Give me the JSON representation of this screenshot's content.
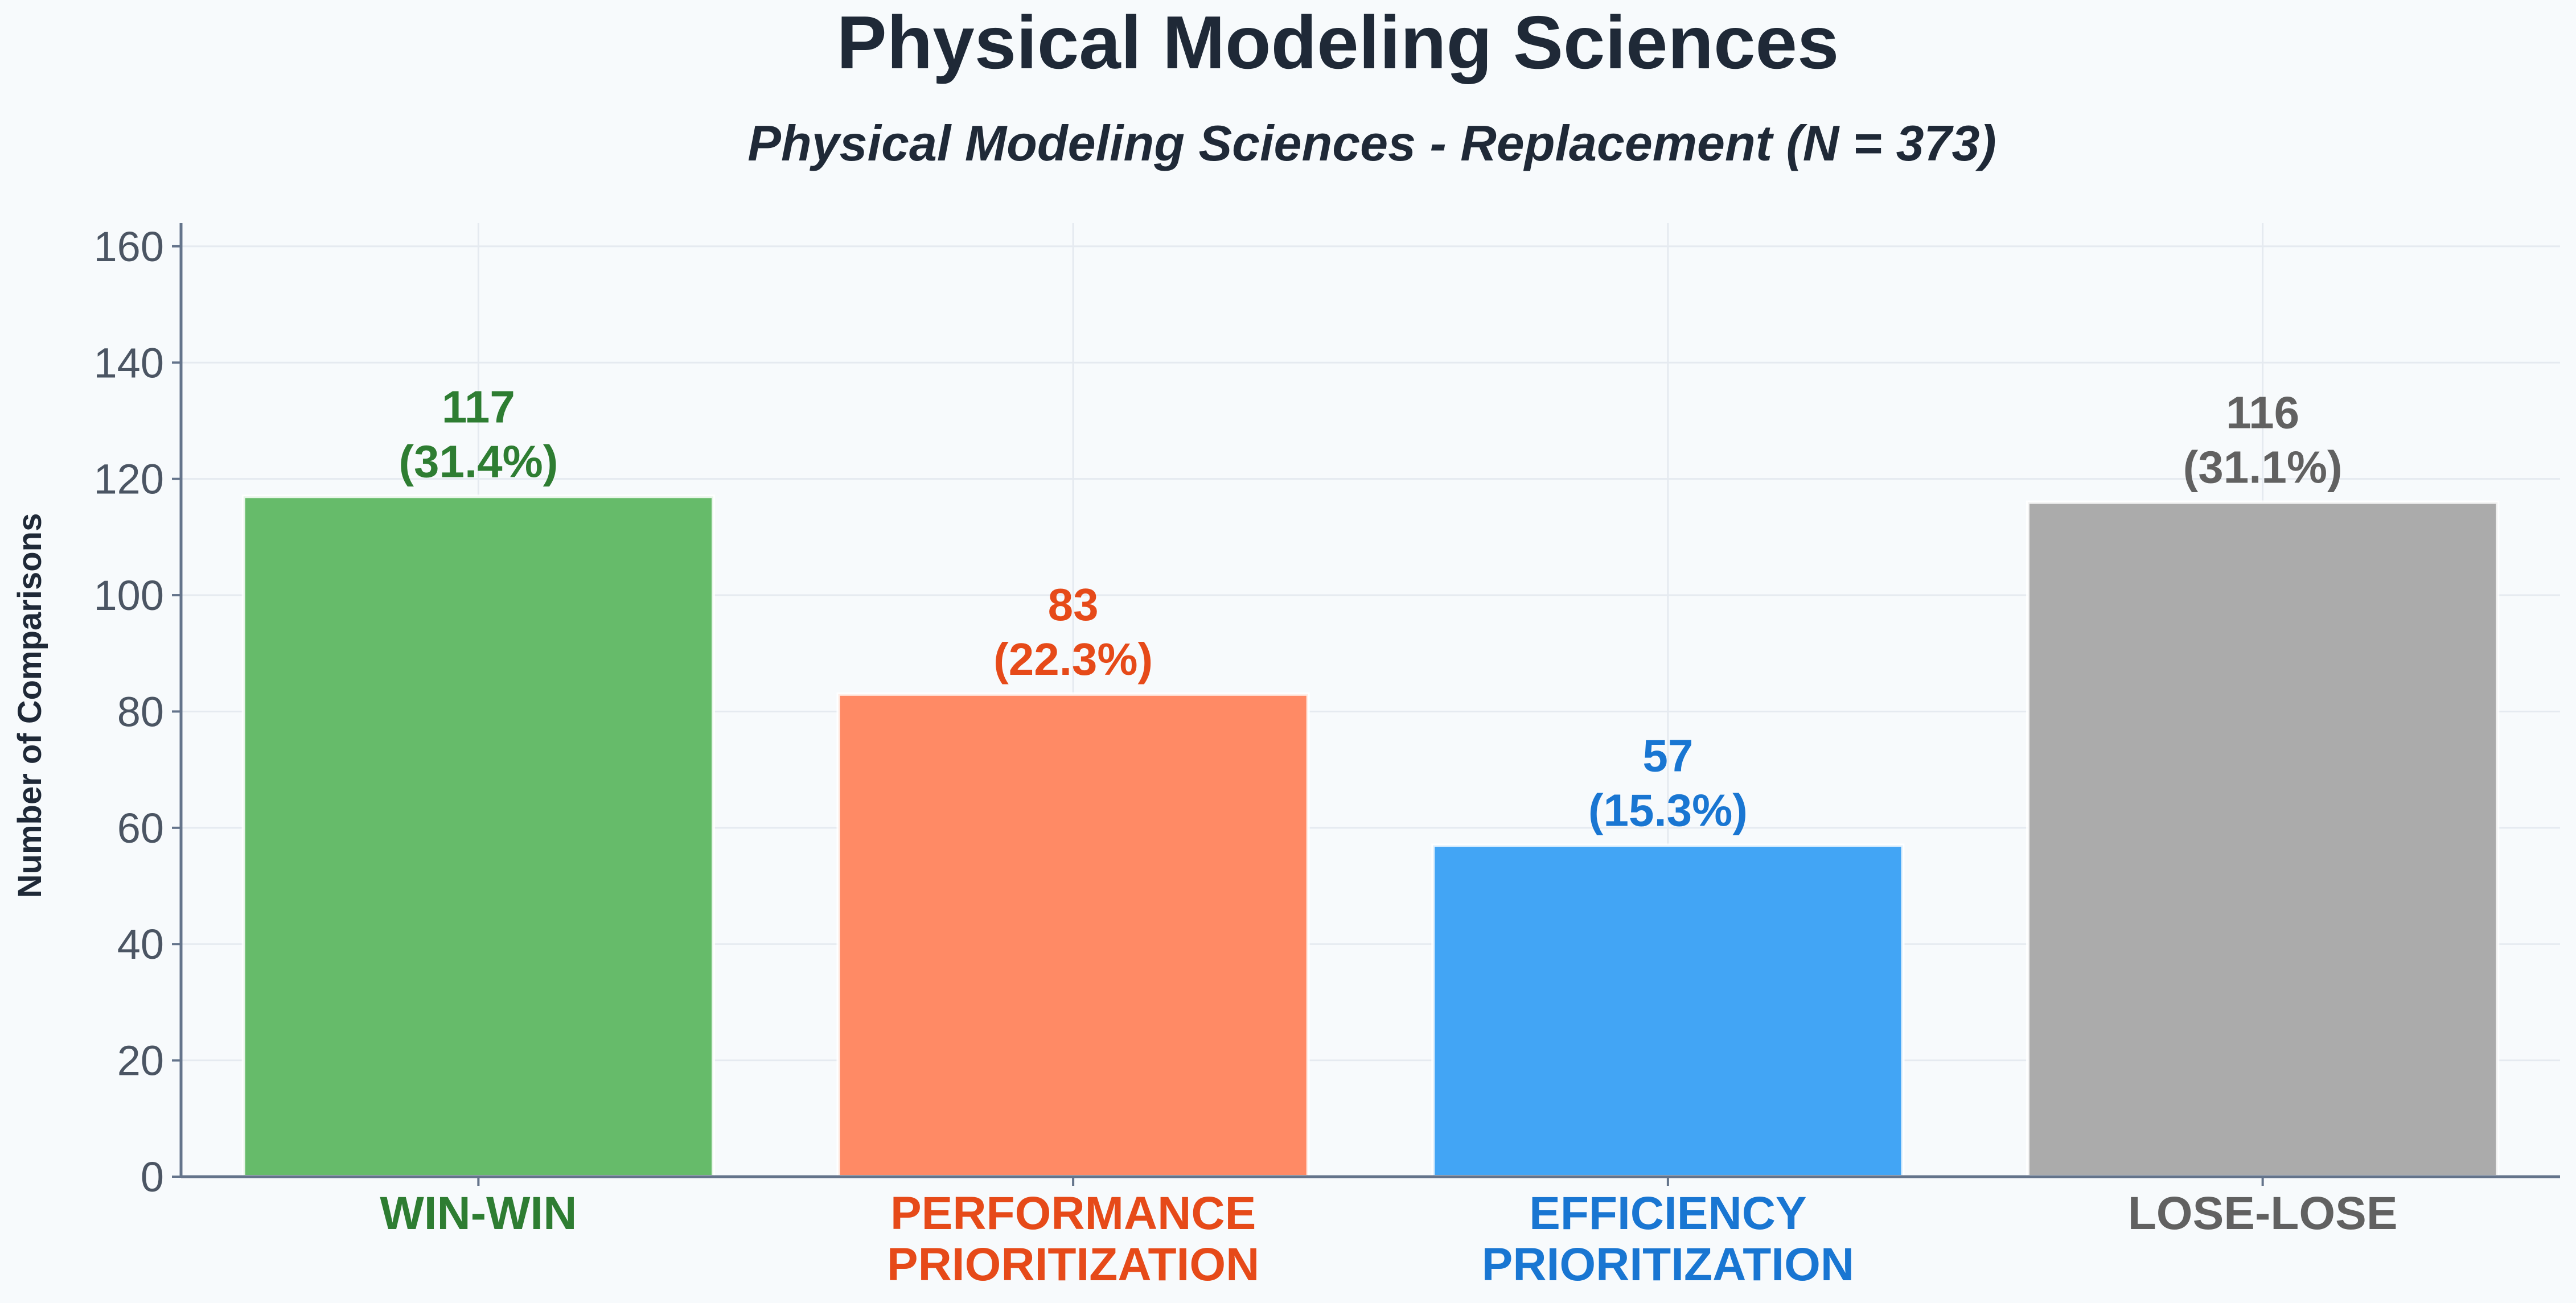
{
  "chart_data": {
    "type": "bar",
    "title": "Physical Modeling Sciences",
    "subtitle": "Physical Modeling Sciences - Replacement (N = 373)",
    "xlabel": "",
    "ylabel": "Number of Comparisons",
    "ylim": [
      0,
      164
    ],
    "yticks": [
      0,
      20,
      40,
      60,
      80,
      100,
      120,
      140,
      160
    ],
    "grid": true,
    "legend": "none",
    "categories": [
      [
        "WIN-WIN"
      ],
      [
        "PERFORMANCE",
        "PRIORITIZATION"
      ],
      [
        "EFFICIENCY",
        "PRIORITIZATION"
      ],
      [
        "LOSE-LOSE"
      ]
    ],
    "values": [
      117,
      83,
      57,
      116
    ],
    "data_labels": [
      [
        "117",
        "(31.4%)"
      ],
      [
        "83",
        "(22.3%)"
      ],
      [
        "57",
        "(15.3%)"
      ],
      [
        "116",
        "(31.1%)"
      ]
    ],
    "bar_colors": [
      "#66bb6a",
      "#ff8a65",
      "#42a5f5",
      "#ababab"
    ],
    "label_colors": [
      "#2e7d32",
      "#e64a19",
      "#1976d2",
      "#616161"
    ],
    "axis_color": "#64748b",
    "grid_color": "#e5eaf0",
    "plot_background": "#f7fafc"
  }
}
